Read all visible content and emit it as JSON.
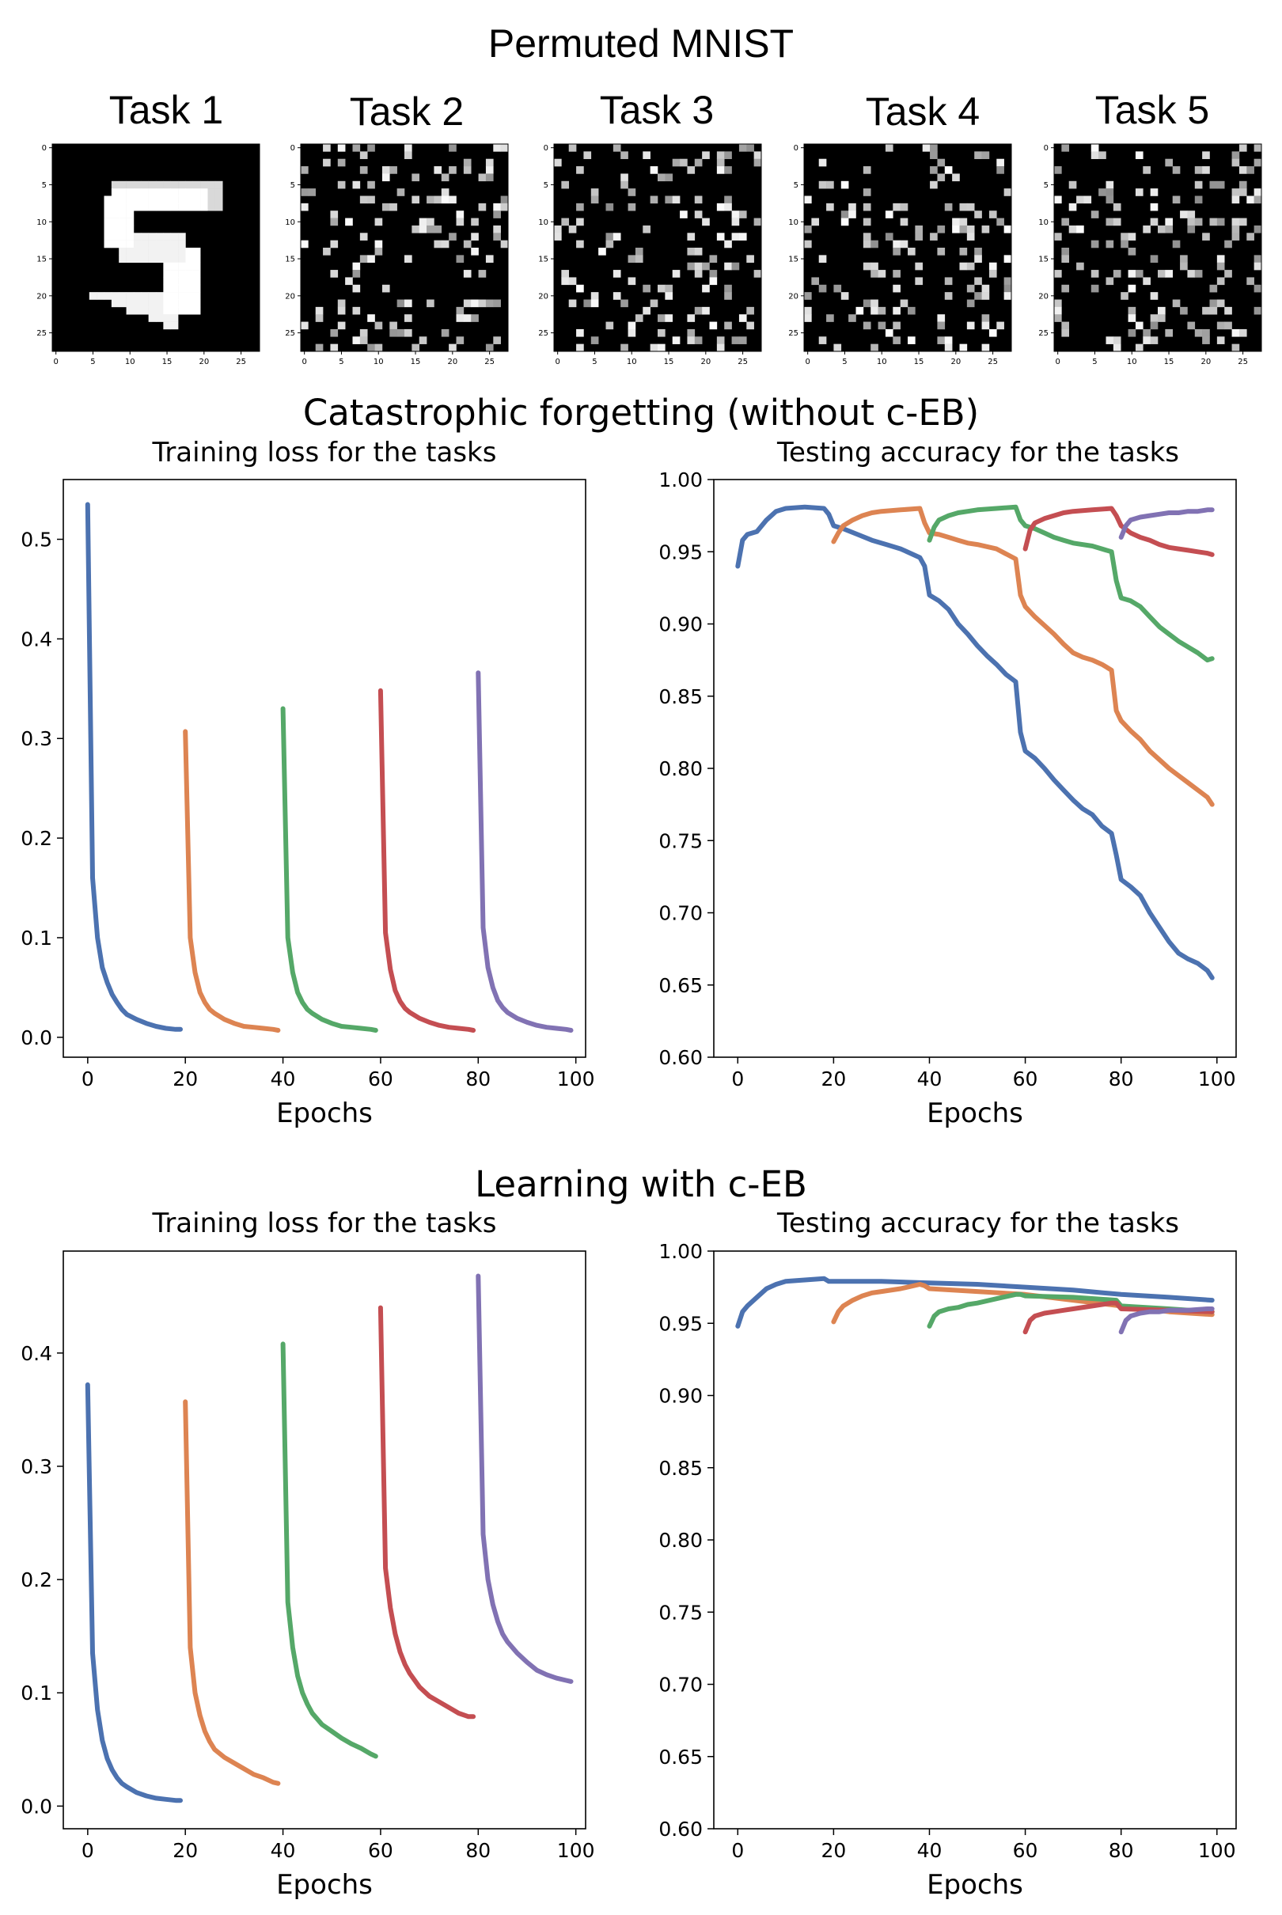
{
  "header": {
    "title": "Permuted MNIST"
  },
  "tasks": [
    {
      "label": "Task 1"
    },
    {
      "label": "Task 2"
    },
    {
      "label": "Task 3"
    },
    {
      "label": "Task 4"
    },
    {
      "label": "Task 5"
    }
  ],
  "digit_axis": {
    "y_ticks": [
      "0",
      "5",
      "10",
      "15",
      "20",
      "25"
    ],
    "x_ticks": [
      "0",
      "5",
      "10",
      "15",
      "20",
      "25"
    ]
  },
  "sections": [
    {
      "title": "Catastrophic forgetting (without c-EB)"
    },
    {
      "title": "Learning with c-EB"
    }
  ],
  "colors": {
    "task1": "#4c72b0",
    "task2": "#dd8452",
    "task3": "#55a868",
    "task4": "#c44e52",
    "task5": "#8172b3"
  },
  "chart_data": [
    {
      "id": "loss_without",
      "type": "line",
      "title": "Training loss for the tasks",
      "xlabel": "Epochs",
      "ylabel": "",
      "xlim": [
        -5,
        102
      ],
      "ylim": [
        -0.02,
        0.56
      ],
      "x_ticks": [
        0,
        20,
        40,
        60,
        80,
        100
      ],
      "y_ticks": [
        0.0,
        0.1,
        0.2,
        0.3,
        0.4,
        0.5
      ],
      "y_tick_labels": [
        "0.0",
        "0.1",
        "0.2",
        "0.3",
        "0.4",
        "0.5"
      ],
      "series": [
        {
          "color": "#4c72b0",
          "x": [
            0,
            1,
            2,
            3,
            4,
            5,
            6,
            7,
            8,
            10,
            12,
            14,
            16,
            18,
            19
          ],
          "y": [
            0.535,
            0.16,
            0.1,
            0.07,
            0.055,
            0.043,
            0.035,
            0.028,
            0.023,
            0.018,
            0.014,
            0.011,
            0.009,
            0.008,
            0.008
          ]
        },
        {
          "color": "#dd8452",
          "x": [
            20,
            21,
            22,
            23,
            24,
            25,
            26,
            28,
            30,
            32,
            34,
            36,
            38,
            39
          ],
          "y": [
            0.307,
            0.1,
            0.065,
            0.045,
            0.035,
            0.028,
            0.024,
            0.018,
            0.014,
            0.011,
            0.01,
            0.009,
            0.008,
            0.007
          ]
        },
        {
          "color": "#55a868",
          "x": [
            40,
            41,
            42,
            43,
            44,
            45,
            46,
            48,
            50,
            52,
            54,
            56,
            58,
            59
          ],
          "y": [
            0.33,
            0.1,
            0.065,
            0.045,
            0.035,
            0.028,
            0.024,
            0.018,
            0.014,
            0.011,
            0.01,
            0.009,
            0.008,
            0.007
          ]
        },
        {
          "color": "#c44e52",
          "x": [
            60,
            61,
            62,
            63,
            64,
            65,
            66,
            68,
            70,
            72,
            74,
            76,
            78,
            79
          ],
          "y": [
            0.348,
            0.105,
            0.068,
            0.047,
            0.036,
            0.029,
            0.025,
            0.019,
            0.015,
            0.012,
            0.01,
            0.009,
            0.008,
            0.007
          ]
        },
        {
          "color": "#8172b3",
          "x": [
            80,
            81,
            82,
            83,
            84,
            85,
            86,
            88,
            90,
            92,
            94,
            96,
            98,
            99
          ],
          "y": [
            0.366,
            0.11,
            0.07,
            0.05,
            0.037,
            0.03,
            0.025,
            0.019,
            0.015,
            0.012,
            0.01,
            0.009,
            0.008,
            0.007
          ]
        }
      ]
    },
    {
      "id": "acc_without",
      "type": "line",
      "title": "Testing accuracy for the tasks",
      "xlabel": "Epochs",
      "ylabel": "",
      "xlim": [
        -5,
        104
      ],
      "ylim": [
        0.6,
        1.0
      ],
      "x_ticks": [
        0,
        20,
        40,
        60,
        80,
        100
      ],
      "y_ticks": [
        0.6,
        0.65,
        0.7,
        0.75,
        0.8,
        0.85,
        0.9,
        0.95,
        1.0
      ],
      "y_tick_labels": [
        "0.60",
        "0.65",
        "0.70",
        "0.75",
        "0.80",
        "0.85",
        "0.90",
        "0.95",
        "1.00"
      ],
      "series": [
        {
          "color": "#4c72b0",
          "x": [
            0,
            1,
            2,
            4,
            6,
            8,
            10,
            14,
            18,
            19,
            20,
            22,
            25,
            28,
            31,
            34,
            36,
            38,
            39,
            40,
            42,
            44,
            46,
            48,
            50,
            52,
            54,
            56,
            58,
            59,
            60,
            62,
            64,
            66,
            68,
            70,
            72,
            74,
            76,
            78,
            79,
            80,
            82,
            84,
            86,
            88,
            90,
            92,
            94,
            96,
            98,
            99
          ],
          "y": [
            0.94,
            0.958,
            0.962,
            0.964,
            0.972,
            0.978,
            0.98,
            0.981,
            0.98,
            0.976,
            0.968,
            0.966,
            0.962,
            0.958,
            0.955,
            0.952,
            0.949,
            0.946,
            0.94,
            0.92,
            0.916,
            0.91,
            0.9,
            0.893,
            0.885,
            0.878,
            0.872,
            0.865,
            0.86,
            0.825,
            0.812,
            0.807,
            0.8,
            0.792,
            0.785,
            0.778,
            0.772,
            0.768,
            0.76,
            0.755,
            0.74,
            0.723,
            0.718,
            0.712,
            0.7,
            0.69,
            0.68,
            0.672,
            0.668,
            0.665,
            0.66,
            0.655
          ]
        },
        {
          "color": "#dd8452",
          "x": [
            20,
            21,
            22,
            24,
            26,
            28,
            30,
            34,
            38,
            39,
            40,
            42,
            44,
            46,
            48,
            50,
            54,
            58,
            59,
            60,
            62,
            64,
            66,
            68,
            70,
            72,
            74,
            76,
            78,
            79,
            80,
            82,
            84,
            86,
            88,
            90,
            92,
            94,
            96,
            98,
            99
          ],
          "y": [
            0.957,
            0.963,
            0.968,
            0.972,
            0.975,
            0.977,
            0.978,
            0.979,
            0.98,
            0.97,
            0.963,
            0.962,
            0.96,
            0.958,
            0.956,
            0.955,
            0.952,
            0.945,
            0.92,
            0.912,
            0.905,
            0.899,
            0.893,
            0.886,
            0.88,
            0.877,
            0.875,
            0.872,
            0.868,
            0.84,
            0.833,
            0.826,
            0.82,
            0.812,
            0.806,
            0.8,
            0.795,
            0.79,
            0.785,
            0.78,
            0.775
          ]
        },
        {
          "color": "#55a868",
          "x": [
            40,
            41,
            42,
            44,
            46,
            48,
            50,
            54,
            58,
            59,
            60,
            62,
            64,
            66,
            68,
            70,
            74,
            78,
            79,
            80,
            82,
            84,
            86,
            88,
            90,
            92,
            94,
            96,
            98,
            99
          ],
          "y": [
            0.958,
            0.967,
            0.972,
            0.975,
            0.977,
            0.978,
            0.979,
            0.98,
            0.981,
            0.972,
            0.968,
            0.966,
            0.963,
            0.96,
            0.958,
            0.956,
            0.954,
            0.95,
            0.93,
            0.918,
            0.916,
            0.912,
            0.905,
            0.898,
            0.893,
            0.888,
            0.884,
            0.88,
            0.875,
            0.876
          ]
        },
        {
          "color": "#c44e52",
          "x": [
            60,
            61,
            62,
            64,
            66,
            68,
            70,
            74,
            78,
            79,
            80,
            82,
            84,
            86,
            88,
            90,
            92,
            94,
            96,
            98,
            99
          ],
          "y": [
            0.952,
            0.965,
            0.97,
            0.973,
            0.975,
            0.977,
            0.978,
            0.979,
            0.98,
            0.975,
            0.968,
            0.963,
            0.96,
            0.958,
            0.955,
            0.953,
            0.952,
            0.951,
            0.95,
            0.949,
            0.948
          ]
        },
        {
          "color": "#8172b3",
          "x": [
            80,
            81,
            82,
            84,
            86,
            88,
            90,
            92,
            94,
            96,
            98,
            99
          ],
          "y": [
            0.96,
            0.968,
            0.972,
            0.974,
            0.975,
            0.976,
            0.977,
            0.977,
            0.978,
            0.978,
            0.979,
            0.979
          ]
        }
      ]
    },
    {
      "id": "loss_with",
      "type": "line",
      "title": "Training loss for the tasks",
      "xlabel": "Epochs",
      "ylabel": "",
      "xlim": [
        -5,
        102
      ],
      "ylim": [
        -0.02,
        0.49
      ],
      "x_ticks": [
        0,
        20,
        40,
        60,
        80,
        100
      ],
      "y_ticks": [
        0.0,
        0.1,
        0.2,
        0.3,
        0.4
      ],
      "y_tick_labels": [
        "0.0",
        "0.1",
        "0.2",
        "0.3",
        "0.4"
      ],
      "series": [
        {
          "color": "#4c72b0",
          "x": [
            0,
            1,
            2,
            3,
            4,
            5,
            6,
            7,
            8,
            10,
            12,
            14,
            16,
            18,
            19
          ],
          "y": [
            0.372,
            0.135,
            0.085,
            0.058,
            0.042,
            0.032,
            0.025,
            0.02,
            0.017,
            0.012,
            0.009,
            0.007,
            0.006,
            0.005,
            0.005
          ]
        },
        {
          "color": "#dd8452",
          "x": [
            20,
            21,
            22,
            23,
            24,
            25,
            26,
            28,
            30,
            32,
            34,
            36,
            38,
            39
          ],
          "y": [
            0.357,
            0.14,
            0.1,
            0.08,
            0.066,
            0.057,
            0.05,
            0.043,
            0.038,
            0.033,
            0.028,
            0.025,
            0.021,
            0.02
          ]
        },
        {
          "color": "#55a868",
          "x": [
            40,
            41,
            42,
            43,
            44,
            45,
            46,
            48,
            50,
            52,
            54,
            56,
            58,
            59
          ],
          "y": [
            0.408,
            0.18,
            0.14,
            0.115,
            0.1,
            0.09,
            0.082,
            0.072,
            0.066,
            0.06,
            0.055,
            0.051,
            0.046,
            0.044
          ]
        },
        {
          "color": "#c44e52",
          "x": [
            60,
            61,
            62,
            63,
            64,
            65,
            66,
            68,
            70,
            72,
            74,
            76,
            78,
            79
          ],
          "y": [
            0.44,
            0.21,
            0.175,
            0.152,
            0.136,
            0.125,
            0.117,
            0.105,
            0.097,
            0.092,
            0.087,
            0.082,
            0.079,
            0.079
          ]
        },
        {
          "color": "#8172b3",
          "x": [
            80,
            81,
            82,
            83,
            84,
            85,
            86,
            88,
            90,
            92,
            94,
            96,
            98,
            99
          ],
          "y": [
            0.468,
            0.24,
            0.2,
            0.178,
            0.163,
            0.152,
            0.145,
            0.135,
            0.127,
            0.12,
            0.116,
            0.113,
            0.111,
            0.11
          ]
        }
      ]
    },
    {
      "id": "acc_with",
      "type": "line",
      "title": "Testing accuracy for the tasks",
      "xlabel": "Epochs",
      "ylabel": "",
      "xlim": [
        -5,
        104
      ],
      "ylim": [
        0.6,
        1.0
      ],
      "x_ticks": [
        0,
        20,
        40,
        60,
        80,
        100
      ],
      "y_ticks": [
        0.6,
        0.65,
        0.7,
        0.75,
        0.8,
        0.85,
        0.9,
        0.95,
        1.0
      ],
      "y_tick_labels": [
        "0.60",
        "0.65",
        "0.70",
        "0.75",
        "0.80",
        "0.85",
        "0.90",
        "0.95",
        "1.00"
      ],
      "series": [
        {
          "color": "#4c72b0",
          "x": [
            0,
            1,
            2,
            4,
            6,
            8,
            10,
            14,
            18,
            19,
            20,
            30,
            40,
            50,
            60,
            70,
            80,
            90,
            99
          ],
          "y": [
            0.948,
            0.958,
            0.962,
            0.968,
            0.974,
            0.977,
            0.979,
            0.98,
            0.981,
            0.979,
            0.979,
            0.979,
            0.978,
            0.977,
            0.975,
            0.973,
            0.97,
            0.968,
            0.966
          ]
        },
        {
          "color": "#dd8452",
          "x": [
            20,
            21,
            22,
            24,
            26,
            28,
            30,
            34,
            38,
            39,
            40,
            50,
            60,
            70,
            80,
            90,
            99
          ],
          "y": [
            0.951,
            0.958,
            0.962,
            0.966,
            0.969,
            0.971,
            0.972,
            0.974,
            0.977,
            0.976,
            0.974,
            0.972,
            0.97,
            0.966,
            0.962,
            0.958,
            0.956
          ]
        },
        {
          "color": "#55a868",
          "x": [
            40,
            41,
            42,
            44,
            46,
            48,
            50,
            54,
            58,
            59,
            60,
            70,
            79,
            80,
            90,
            99
          ],
          "y": [
            0.948,
            0.955,
            0.958,
            0.96,
            0.961,
            0.963,
            0.964,
            0.967,
            0.97,
            0.97,
            0.969,
            0.968,
            0.966,
            0.962,
            0.96,
            0.958
          ]
        },
        {
          "color": "#c44e52",
          "x": [
            60,
            61,
            62,
            64,
            66,
            68,
            70,
            74,
            78,
            79,
            80,
            90,
            99
          ],
          "y": [
            0.944,
            0.952,
            0.955,
            0.957,
            0.958,
            0.959,
            0.96,
            0.962,
            0.964,
            0.964,
            0.96,
            0.959,
            0.958
          ]
        },
        {
          "color": "#8172b3",
          "x": [
            80,
            81,
            82,
            84,
            86,
            88,
            90,
            94,
            98,
            99
          ],
          "y": [
            0.944,
            0.952,
            0.955,
            0.957,
            0.958,
            0.958,
            0.959,
            0.959,
            0.96,
            0.96
          ]
        }
      ]
    }
  ]
}
